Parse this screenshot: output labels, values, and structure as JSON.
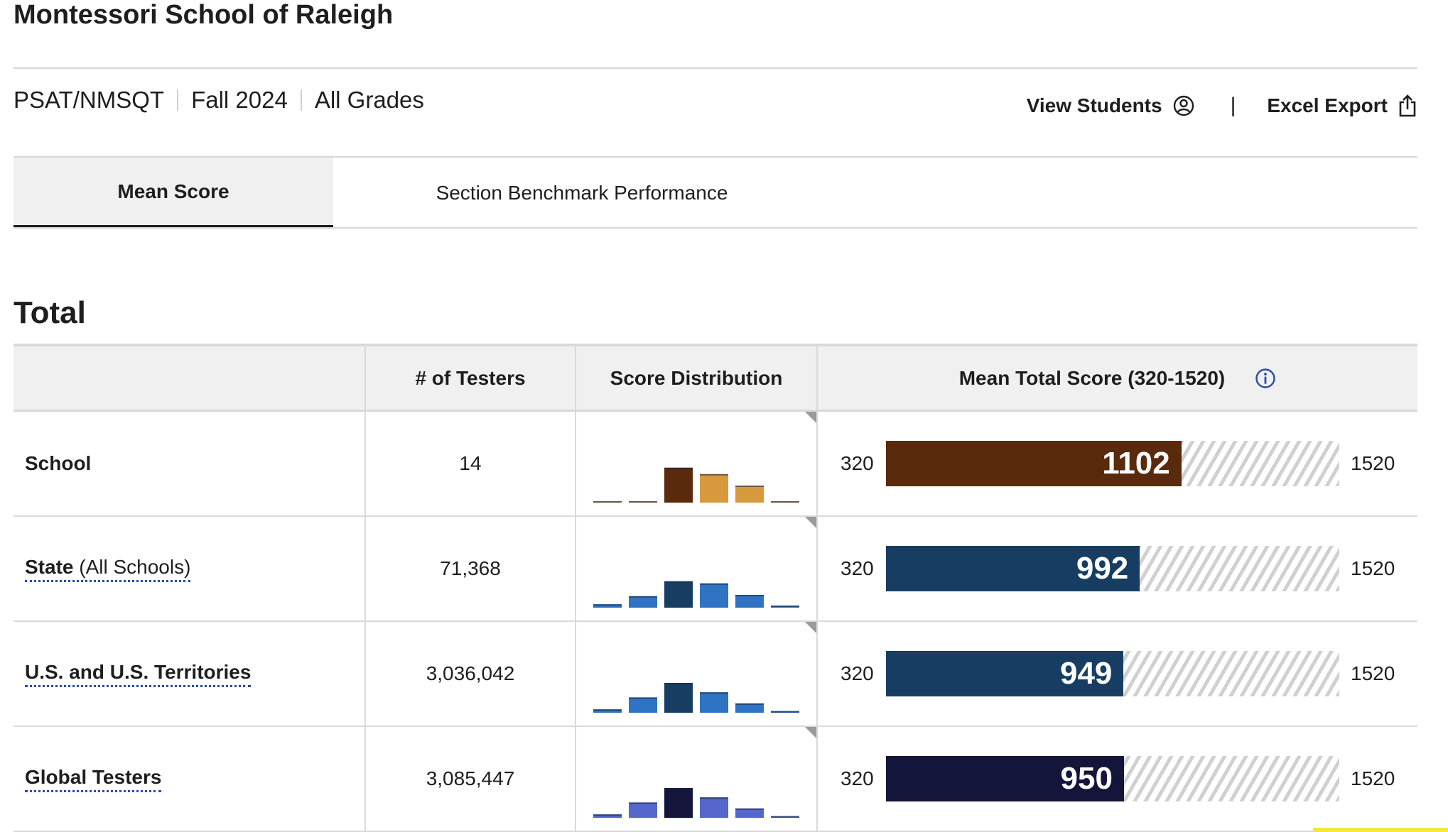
{
  "header": {
    "school_name": "Montessori School of Raleigh"
  },
  "filters": {
    "test": "PSAT/NMSQT",
    "term": "Fall 2024",
    "grades": "All Grades"
  },
  "actions": {
    "view_students": "View Students",
    "divider": "|",
    "excel_export": "Excel Export"
  },
  "tabs": {
    "mean_score": "Mean Score",
    "section_benchmark": "Section Benchmark Performance"
  },
  "section": {
    "title": "Total"
  },
  "table": {
    "headers": {
      "group": "",
      "testers": "# of Testers",
      "distribution": "Score Distribution",
      "mean_total": "Mean Total Score (320-1520)"
    },
    "scale_min": 320,
    "scale_max": 1520,
    "scale_min_label": "320",
    "scale_max_label": "1520",
    "rows": [
      {
        "label": "School",
        "label_suffix": "",
        "testers": "14",
        "mean": 1102,
        "mean_label": "1102",
        "bar_color": "#5a2a0c",
        "dist_colors": [
          "#d69a3c",
          "#d69a3c",
          "#5a2a0c",
          "#d69a3c",
          "#d69a3c",
          "#d69a3c"
        ],
        "distribution": [
          0,
          0,
          0.82,
          0.67,
          0.4,
          0
        ]
      },
      {
        "label": "State",
        "label_suffix": " (All Schools)",
        "testers": "71,368",
        "mean": 992,
        "mean_label": "992",
        "bar_color": "#173e62",
        "dist_colors": [
          "#2e73c4",
          "#2e73c4",
          "#173e62",
          "#2e73c4",
          "#2e73c4",
          "#2e73c4"
        ],
        "distribution": [
          0.08,
          0.27,
          0.62,
          0.57,
          0.3,
          0.05
        ]
      },
      {
        "label": "U.S. and U.S. Territories",
        "label_suffix": "",
        "testers": "3,036,042",
        "mean": 949,
        "mean_label": "949",
        "bar_color": "#173e62",
        "dist_colors": [
          "#2e73c4",
          "#2e73c4",
          "#173e62",
          "#2e73c4",
          "#2e73c4",
          "#2e73c4"
        ],
        "distribution": [
          0.08,
          0.36,
          0.7,
          0.48,
          0.22,
          0.04
        ]
      },
      {
        "label": "Global Testers",
        "label_suffix": "",
        "testers": "3,085,447",
        "mean": 950,
        "mean_label": "950",
        "bar_color": "#13163a",
        "dist_colors": [
          "#5566cc",
          "#5566cc",
          "#13163a",
          "#5566cc",
          "#5566cc",
          "#5566cc"
        ],
        "distribution": [
          0.08,
          0.36,
          0.7,
          0.48,
          0.22,
          0.04
        ]
      }
    ]
  }
}
